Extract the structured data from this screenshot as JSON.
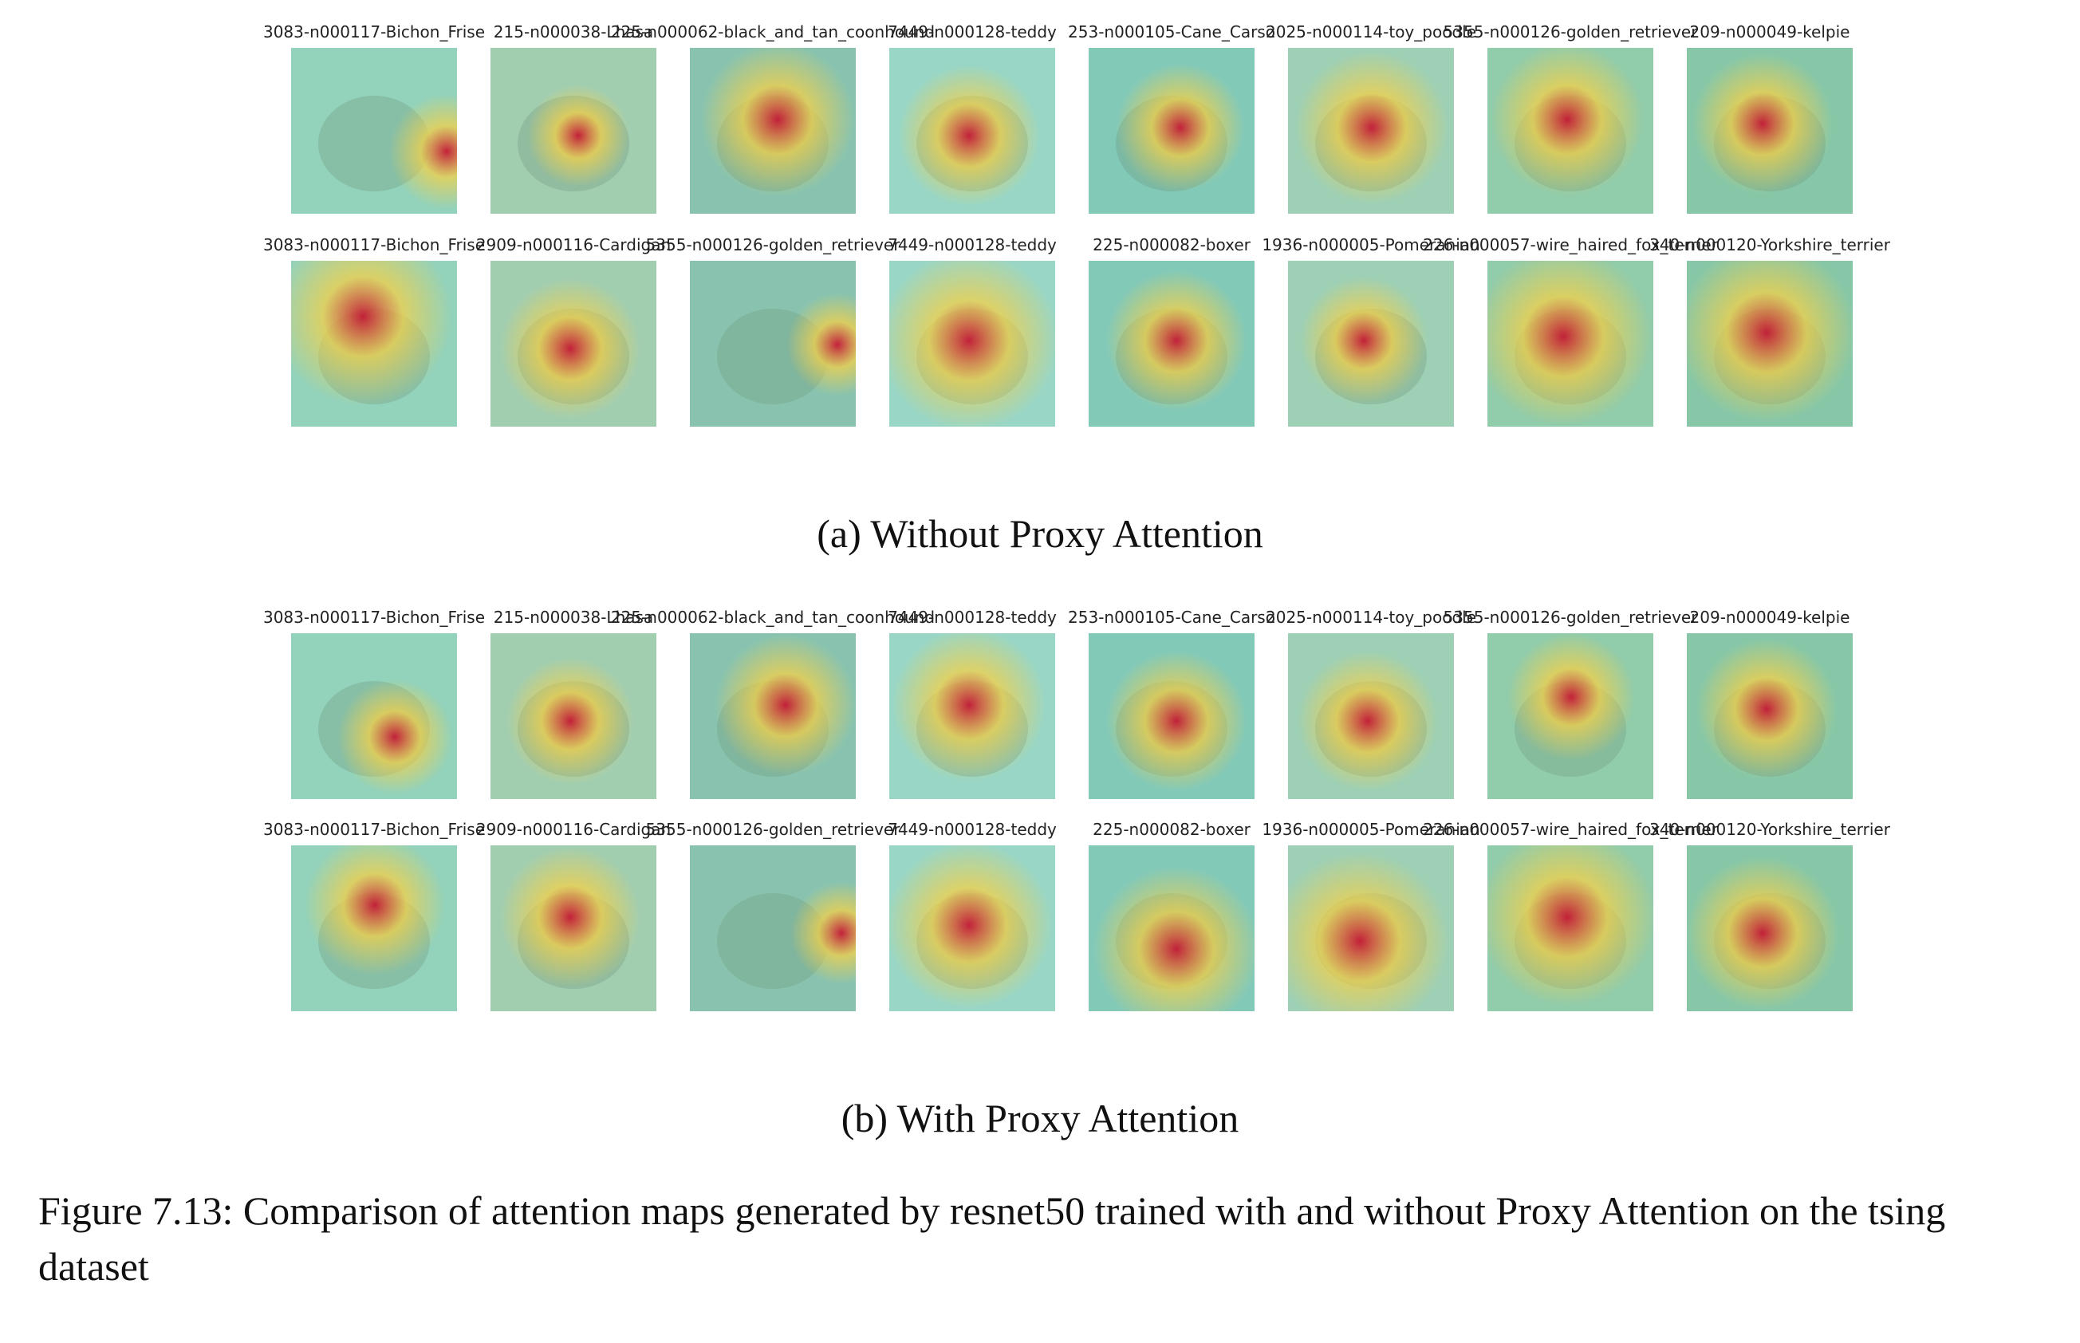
{
  "panels": [
    {
      "caption": "(a) Without Proxy Attention",
      "rows": [
        [
          "3083-n000117-Bichon_Frise",
          "215-n000038-Lhasa",
          "225-n000062-black_and_tan_coonhound",
          "7449-n000128-teddy",
          "253-n000105-Cane_Carso",
          "2025-n000114-toy_poodle",
          "5355-n000126-golden_retriever",
          "209-n000049-kelpie"
        ],
        [
          "3083-n000117-Bichon_Frise",
          "2909-n000116-Cardigan",
          "5355-n000126-golden_retriever",
          "7449-n000128-teddy",
          "225-n000082-boxer",
          "1936-n000005-Pomeranian",
          "226-n000057-wire_haired_fox_terrier",
          "340-n000120-Yorkshire_terrier"
        ]
      ]
    },
    {
      "caption": "(b) With Proxy Attention",
      "rows": [
        [
          "3083-n000117-Bichon_Frise",
          "215-n000038-Lhasa",
          "225-n000062-black_and_tan_coonhound",
          "7449-n000128-teddy",
          "253-n000105-Cane_Carso",
          "2025-n000114-toy_poodle",
          "5355-n000126-golden_retriever",
          "209-n000049-kelpie"
        ],
        [
          "3083-n000117-Bichon_Frise",
          "2909-n000116-Cardigan",
          "5355-n000126-golden_retriever",
          "7449-n000128-teddy",
          "225-n000082-boxer",
          "1936-n000005-Pomeranian",
          "226-n000057-wire_haired_fox_terrier",
          "340-n000120-Yorkshire_terrier"
        ]
      ]
    }
  ],
  "figure_caption": "Figure 7.13: Comparison of attention maps generated by resnet50 trained with and without Proxy Attention on the tsing dataset",
  "colors": {
    "overlay": "#7fd6c0",
    "hot": "#c8102e",
    "warm": "#f2d04a"
  }
}
